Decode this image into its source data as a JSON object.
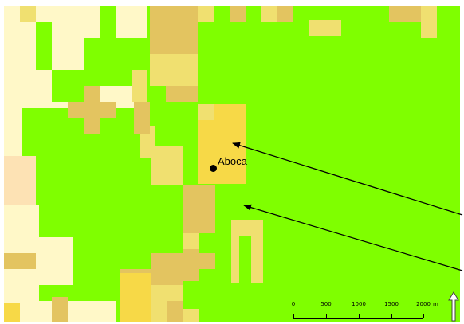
{
  "map": {
    "place_label": "Aboca",
    "scale_bar": {
      "ticks": [
        "0",
        "500",
        "1000",
        "1500",
        "2000"
      ],
      "unit": "m"
    },
    "north_arrow_icon": "north-arrow-icon",
    "colors": {
      "pale_cream": "#fff8c8",
      "light_peach": "#fde2b4",
      "light_yellow": "#f0e070",
      "khaki": "#e3c460",
      "golden": "#f7d947",
      "green": "#7fff00"
    }
  }
}
